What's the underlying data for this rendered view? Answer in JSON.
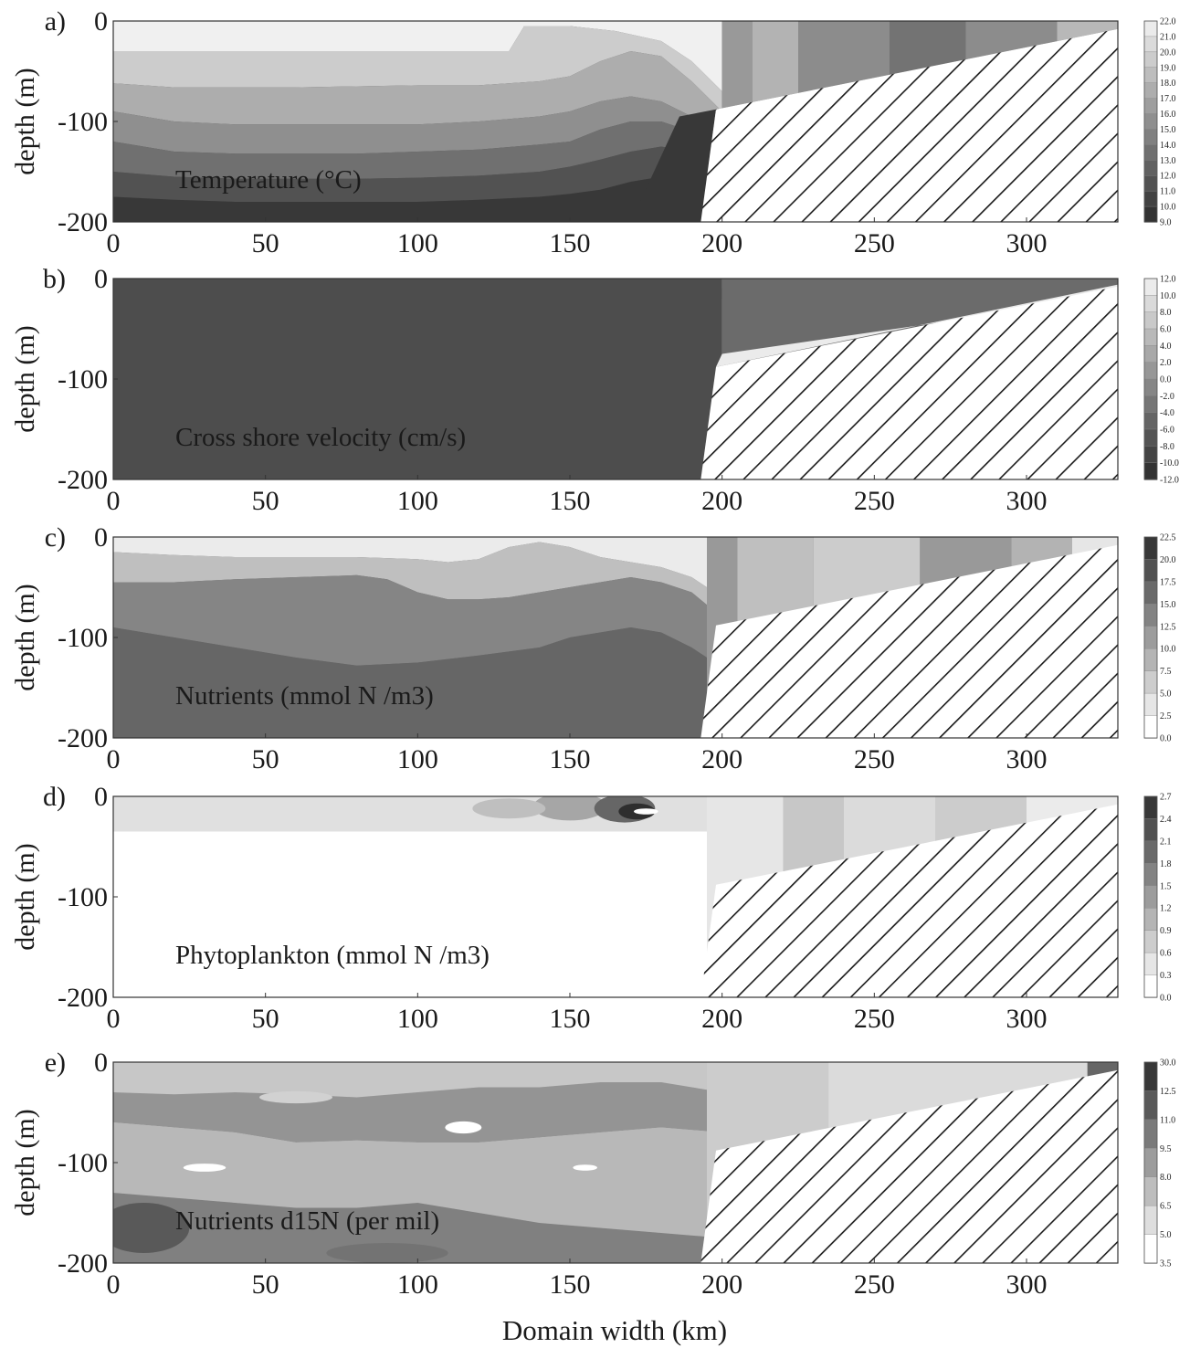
{
  "figure": {
    "xlabel": "Domain width (km)",
    "x_ticks": [
      "0",
      "50",
      "100",
      "150",
      "200",
      "250",
      "300"
    ],
    "y_ticks": [
      "0",
      "-100",
      "-200"
    ]
  },
  "chart_data": [
    {
      "type": "heatmap",
      "panel": "a)",
      "field_label": "Temperature (°C)",
      "ylabel": "depth (m)",
      "xlim": [
        0,
        330
      ],
      "ylim": [
        -200,
        0
      ],
      "colorbar": [
        "22.0",
        "21.0",
        "20.0",
        "19.0",
        "18.0",
        "17.0",
        "16.0",
        "15.0",
        "14.0",
        "13.0",
        "12.0",
        "11.0",
        "10.0",
        "9.0"
      ],
      "dark_high": false,
      "bands": [
        {
          "level": 0.94,
          "x": [
            0,
            20,
            40,
            60,
            80,
            100,
            120,
            140,
            160,
            180,
            190,
            200
          ],
          "y": [
            0,
            0,
            0,
            0,
            0,
            0,
            0,
            0,
            0,
            0,
            0,
            0
          ]
        },
        {
          "level": 0.8,
          "x": [
            0,
            20,
            40,
            60,
            80,
            100,
            120,
            130,
            135,
            150,
            165,
            180,
            190,
            200
          ],
          "y": [
            -30,
            -30,
            -30,
            -30,
            -30,
            -30,
            -30,
            -30,
            -5,
            -5,
            -10,
            -20,
            -40,
            -70
          ]
        },
        {
          "level": 0.68,
          "x": [
            0,
            20,
            40,
            60,
            80,
            100,
            120,
            140,
            150,
            160,
            170,
            180,
            190,
            200
          ],
          "y": [
            -62,
            -66,
            -66,
            -66,
            -65,
            -64,
            -64,
            -60,
            -55,
            -40,
            -30,
            -35,
            -60,
            -90
          ]
        },
        {
          "level": 0.56,
          "x": [
            0,
            20,
            40,
            60,
            80,
            100,
            120,
            140,
            150,
            160,
            170,
            180,
            190,
            200
          ],
          "y": [
            -90,
            -100,
            -103,
            -103,
            -103,
            -103,
            -100,
            -95,
            -90,
            -80,
            -75,
            -80,
            -95,
            -100
          ]
        },
        {
          "level": 0.44,
          "x": [
            0,
            20,
            40,
            60,
            80,
            100,
            120,
            140,
            150,
            160,
            170,
            180,
            190,
            200
          ],
          "y": [
            -120,
            -130,
            -132,
            -132,
            -132,
            -130,
            -128,
            -123,
            -120,
            -108,
            -100,
            -100,
            -110,
            -120
          ]
        },
        {
          "level": 0.32,
          "x": [
            0,
            20,
            40,
            60,
            80,
            100,
            120,
            140,
            150,
            160,
            170,
            180,
            190,
            200
          ],
          "y": [
            -150,
            -155,
            -157,
            -157,
            -157,
            -156,
            -154,
            -150,
            -145,
            -138,
            -130,
            -125,
            -130,
            -140
          ]
        },
        {
          "level": 0.22,
          "x": [
            0,
            20,
            40,
            60,
            80,
            100,
            120,
            140,
            150,
            160,
            170,
            180,
            190,
            200
          ],
          "y": [
            -175,
            -178,
            -180,
            -180,
            -180,
            -180,
            -178,
            -175,
            -172,
            -168,
            -160,
            -155,
            -155,
            -160
          ]
        }
      ],
      "shelf_columns": [
        {
          "x0": 200,
          "x1": 210,
          "level": 0.6
        },
        {
          "x0": 210,
          "x1": 225,
          "level": 0.7
        },
        {
          "x0": 225,
          "x1": 255,
          "level": 0.55
        },
        {
          "x0": 255,
          "x1": 280,
          "level": 0.45
        },
        {
          "x0": 280,
          "x1": 310,
          "level": 0.55
        },
        {
          "x0": 310,
          "x1": 330,
          "level": 0.72
        }
      ],
      "shelf_bottom_dark": true
    },
    {
      "type": "heatmap",
      "panel": "b)",
      "field_label": "Cross shore velocity (cm/s)",
      "ylabel": "depth (m)",
      "xlim": [
        0,
        330
      ],
      "ylim": [
        -200,
        0
      ],
      "colorbar": [
        "12.0",
        "10.0",
        "8.0",
        "6.0",
        "4.0",
        "2.0",
        "0.0",
        "-2.0",
        "-4.0",
        "-6.0",
        "-8.0",
        "-10.0",
        "-12.0"
      ],
      "dark_high": false,
      "bands": [
        {
          "level": 0.78,
          "x": [
            0,
            50,
            100,
            150,
            190,
            200
          ],
          "y": [
            0,
            0,
            0,
            0,
            0,
            0
          ]
        },
        {
          "level": 0.42,
          "x": [
            0,
            20,
            40,
            45,
            60,
            80,
            100,
            120,
            140,
            160,
            170,
            180,
            190,
            200
          ],
          "y": [
            0,
            0,
            0,
            0,
            0,
            0,
            0,
            0,
            0,
            0,
            0,
            0,
            -5,
            -20
          ]
        },
        {
          "level": 0.3,
          "x": [
            0,
            20,
            40,
            60,
            80,
            100,
            120,
            140,
            160,
            180,
            200
          ],
          "y": [
            0,
            0,
            0,
            0,
            0,
            0,
            0,
            0,
            0,
            0,
            0
          ]
        }
      ],
      "band_floor": [
        {
          "x": [
            0,
            20,
            40,
            42,
            45,
            60,
            80,
            100,
            120,
            140,
            160,
            170,
            175,
            180,
            185
          ],
          "y": [
            -25,
            -25,
            -25,
            -35,
            -45,
            -45,
            -43,
            -45,
            -50,
            -55,
            -57,
            -45,
            -35,
            -25,
            -15
          ]
        },
        {
          "x": [
            0,
            20,
            40,
            60,
            80,
            100,
            120,
            140,
            160,
            180,
            200
          ],
          "y": [
            -10,
            -10,
            -10,
            -10,
            -10,
            -10,
            -10,
            -10,
            -10,
            -10,
            -10
          ]
        }
      ],
      "shelf_columns": [
        {
          "x0": 200,
          "x1": 330,
          "level": 0.42
        }
      ],
      "shelf_bottom_light": true
    },
    {
      "type": "heatmap",
      "panel": "c)",
      "field_label": "Nutrients (mmol N /m3)",
      "ylabel": "depth (m)",
      "xlim": [
        0,
        330
      ],
      "ylim": [
        -200,
        0
      ],
      "colorbar": [
        "22.5",
        "20.0",
        "17.5",
        "15.0",
        "12.5",
        "10.0",
        "7.5",
        "5.0",
        "2.5",
        "0.0"
      ],
      "dark_high": true,
      "bands": [
        {
          "level": 0.92,
          "x": [
            0,
            20,
            40,
            60,
            80,
            100,
            120,
            140,
            160,
            180,
            200
          ],
          "y": [
            0,
            0,
            0,
            0,
            0,
            0,
            0,
            0,
            0,
            0,
            0
          ]
        },
        {
          "level": 0.75,
          "x": [
            0,
            20,
            40,
            60,
            80,
            100,
            110,
            120,
            130,
            140,
            150,
            160,
            170,
            180,
            190,
            200
          ],
          "y": [
            -15,
            -18,
            -20,
            -20,
            -20,
            -22,
            -25,
            -22,
            -10,
            -5,
            -10,
            -20,
            -25,
            -30,
            -40,
            -60
          ]
        },
        {
          "level": 0.52,
          "x": [
            0,
            20,
            40,
            60,
            80,
            90,
            100,
            110,
            120,
            130,
            140,
            150,
            160,
            170,
            180,
            190,
            200
          ],
          "y": [
            -45,
            -45,
            -42,
            -40,
            -38,
            -42,
            -55,
            -62,
            -62,
            -60,
            -55,
            -50,
            -45,
            -40,
            -45,
            -55,
            -80
          ]
        },
        {
          "level": 0.4,
          "x": [
            0,
            20,
            40,
            60,
            80,
            100,
            120,
            140,
            150,
            160,
            170,
            180,
            190,
            200
          ],
          "y": [
            -90,
            -100,
            -110,
            -120,
            -128,
            -125,
            -118,
            -110,
            -100,
            -95,
            -90,
            -95,
            -110,
            -130
          ]
        }
      ],
      "shelf_columns": [
        {
          "x0": 195,
          "x1": 205,
          "level": 0.6
        },
        {
          "x0": 205,
          "x1": 230,
          "level": 0.75
        },
        {
          "x0": 230,
          "x1": 265,
          "level": 0.8
        },
        {
          "x0": 265,
          "x1": 295,
          "level": 0.6
        },
        {
          "x0": 295,
          "x1": 315,
          "level": 0.7
        },
        {
          "x0": 315,
          "x1": 330,
          "level": 0.9
        }
      ]
    },
    {
      "type": "heatmap",
      "panel": "d)",
      "field_label": "Phytoplankton (mmol N /m3)",
      "ylabel": "depth (m)",
      "xlim": [
        0,
        330
      ],
      "ylim": [
        -200,
        0
      ],
      "colorbar": [
        "2.7",
        "2.4",
        "2.1",
        "1.8",
        "1.5",
        "1.2",
        "0.9",
        "0.6",
        "0.3",
        "0.0"
      ],
      "dark_high": true,
      "bands": [
        {
          "level": 0.88,
          "x": [
            0,
            20,
            40,
            60,
            80,
            100,
            120,
            140,
            160,
            180,
            200
          ],
          "y": [
            0,
            0,
            0,
            0,
            0,
            0,
            0,
            0,
            0,
            0,
            0
          ]
        },
        {
          "level": 1.0,
          "x": [
            0,
            20,
            40,
            60,
            80,
            100,
            120,
            140,
            160,
            180,
            200
          ],
          "y": [
            -35,
            -35,
            -35,
            -35,
            -35,
            -35,
            -35,
            -35,
            -35,
            -35,
            -35
          ]
        }
      ],
      "shelf_columns": [
        {
          "x0": 195,
          "x1": 220,
          "level": 0.9
        },
        {
          "x0": 220,
          "x1": 240,
          "level": 0.78
        },
        {
          "x0": 240,
          "x1": 270,
          "level": 0.86
        },
        {
          "x0": 270,
          "x1": 300,
          "level": 0.8
        },
        {
          "x0": 300,
          "x1": 330,
          "level": 0.92
        }
      ],
      "blobs": [
        {
          "x": 150,
          "y": -10,
          "rx": 12,
          "ry": 14,
          "level": 0.65
        },
        {
          "x": 168,
          "y": -12,
          "rx": 10,
          "ry": 14,
          "level": 0.4
        },
        {
          "x": 172,
          "y": -15,
          "rx": 6,
          "ry": 8,
          "level": 0.18
        },
        {
          "x": 175,
          "y": -15,
          "rx": 4,
          "ry": 3,
          "level": 1.0
        },
        {
          "x": 130,
          "y": -12,
          "rx": 12,
          "ry": 10,
          "level": 0.75
        }
      ]
    },
    {
      "type": "heatmap",
      "panel": "e)",
      "field_label": "Nutrients d15N (per mil)",
      "ylabel": "depth (m)",
      "xlim": [
        0,
        330
      ],
      "ylim": [
        -200,
        0
      ],
      "colorbar": [
        "30.0",
        "12.5",
        "11.0",
        "9.5",
        "8.0",
        "6.5",
        "5.0",
        "3.5"
      ],
      "dark_high": true,
      "bands": [
        {
          "level": 0.78,
          "x": [
            0,
            20,
            40,
            60,
            80,
            100,
            120,
            140,
            160,
            180,
            200
          ],
          "y": [
            0,
            0,
            0,
            0,
            0,
            0,
            0,
            0,
            0,
            0,
            0
          ]
        },
        {
          "level": 0.3,
          "x": [
            0,
            20,
            40,
            60,
            80,
            100,
            120,
            140,
            160,
            180,
            200
          ],
          "y": [
            0,
            0,
            0,
            0,
            0,
            0,
            0,
            0,
            0,
            0,
            0
          ]
        },
        {
          "level": 0.58,
          "x": [
            0,
            20,
            40,
            60,
            80,
            100,
            120,
            140,
            160,
            180,
            200
          ],
          "y": [
            -30,
            -32,
            -30,
            -32,
            -35,
            -30,
            -25,
            -25,
            -20,
            -20,
            -30
          ]
        },
        {
          "level": 0.72,
          "x": [
            0,
            20,
            40,
            60,
            80,
            100,
            120,
            140,
            160,
            180,
            200
          ],
          "y": [
            -60,
            -65,
            -70,
            -80,
            -78,
            -80,
            -80,
            -75,
            -70,
            -65,
            -70
          ]
        },
        {
          "level": 0.5,
          "x": [
            0,
            20,
            40,
            60,
            80,
            100,
            120,
            140,
            160,
            180,
            200
          ],
          "y": [
            -130,
            -135,
            -140,
            -145,
            -145,
            -140,
            -150,
            -160,
            -165,
            -170,
            -175
          ]
        }
      ],
      "band_floor": [
        {
          "x": [
            0,
            20,
            40,
            60,
            80,
            100,
            110,
            120,
            130,
            140,
            150,
            160,
            170,
            180,
            190,
            200
          ],
          "y": [
            -20,
            -25,
            -30,
            -35,
            -40,
            -45,
            -55,
            -62,
            -65,
            -60,
            -50,
            -40,
            -30,
            -25,
            -20,
            -15
          ]
        },
        {
          "x": [
            0,
            200
          ],
          "y": [
            0,
            0
          ]
        }
      ],
      "shelf_columns": [
        {
          "x0": 195,
          "x1": 235,
          "level": 0.8
        },
        {
          "x0": 235,
          "x1": 320,
          "level": 0.86
        },
        {
          "x0": 320,
          "x1": 330,
          "level": 0.4
        }
      ],
      "blobs": [
        {
          "x": 10,
          "y": -165,
          "rx": 15,
          "ry": 25,
          "level": 0.35
        },
        {
          "x": 90,
          "y": -190,
          "rx": 20,
          "ry": 10,
          "level": 0.45
        },
        {
          "x": 115,
          "y": -65,
          "rx": 6,
          "ry": 6,
          "level": 1.0
        },
        {
          "x": 155,
          "y": -105,
          "rx": 4,
          "ry": 3,
          "level": 1.0
        },
        {
          "x": 30,
          "y": -105,
          "rx": 7,
          "ry": 4,
          "level": 1.0
        },
        {
          "x": 60,
          "y": -35,
          "rx": 12,
          "ry": 6,
          "level": 0.82
        }
      ]
    }
  ]
}
